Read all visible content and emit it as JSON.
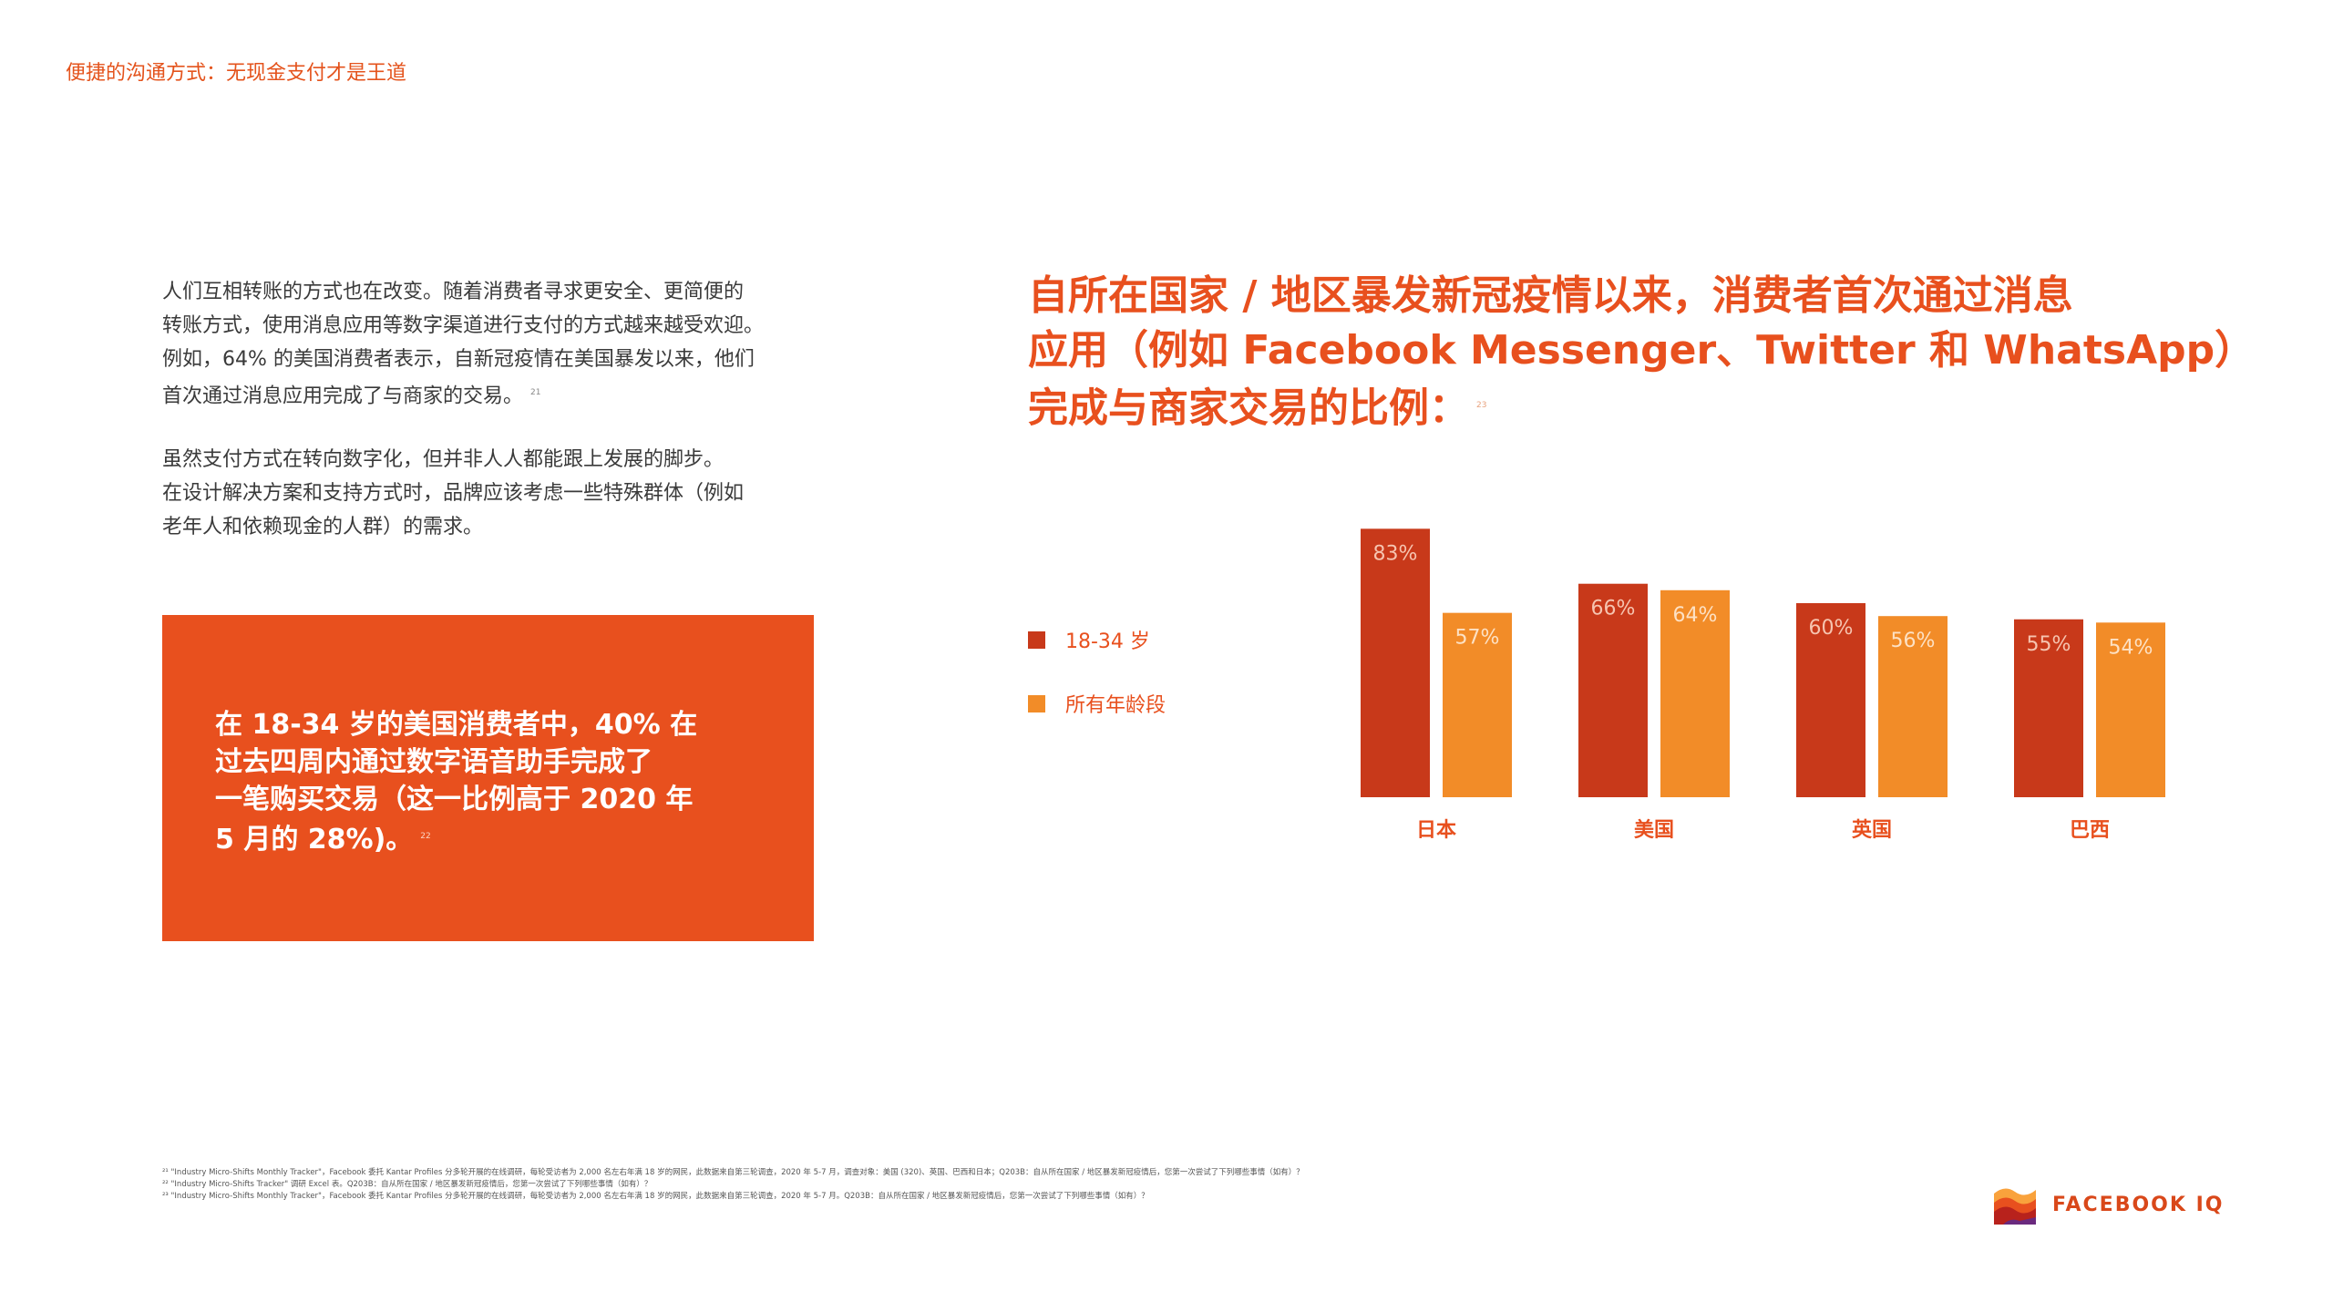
{
  "header": {
    "title": "便捷的沟通方式：无现金支付才是王道"
  },
  "body_text": {
    "paragraph1": [
      "人们互相转账的方式也在改变。随着消费者寻求更安全、更简便的",
      "转账方式，使用消息应用等数字渠道进行支付的方式越来越受欢迎。",
      "例如，64% 的美国消费者表示，自新冠疫情在美国暴发以来，他们",
      "首次通过消息应用完成了与商家的交易。"
    ],
    "paragraph1_footnote": "21",
    "paragraph2": [
      "虽然支付方式在转向数字化，但并非人人都能跟上发展的脚步。",
      "在设计解决方案和支持方式时，品牌应该考虑一些特殊群体（例如",
      "老年人和依赖现金的人群）的需求。"
    ]
  },
  "callout": {
    "lines": [
      "在 18-34 岁的美国消费者中，40% 在",
      "过去四周内通过数字语音助手完成了",
      "一笔购买交易（这一比例高于 2020 年",
      "5 月的 28%)。"
    ],
    "footnote": "22"
  },
  "chart_data": {
    "type": "bar",
    "title_lines": [
      "自所在国家 / 地区暴发新冠疫情以来，消费者首次通过消息",
      "应用（例如 Facebook Messenger、Twitter 和 WhatsApp）",
      "完成与商家交易的比例："
    ],
    "title_footnote": "23",
    "categories": [
      "日本",
      "美国",
      "英国",
      "巴西"
    ],
    "series": [
      {
        "name": "18-34 岁",
        "values": [
          83,
          66,
          60,
          55
        ],
        "color": "#c8391a"
      },
      {
        "name": "所有年龄段",
        "values": [
          57,
          64,
          56,
          54
        ],
        "color": "#f28c28"
      }
    ],
    "value_suffix": "%",
    "ylim": [
      0,
      100
    ],
    "grid": false,
    "legend_position": "left"
  },
  "footnotes": [
    "²¹ \"Industry Micro-Shifts Monthly Tracker\"，Facebook 委托 Kantar Profiles 分多轮开展的在线调研，每轮受访者为 2,000 名左右年满 18 岁的网民，此数据来自第三轮调查，2020 年 5-7 月，调查对象：美国 (320)、英国、巴西和日本；Q203B：自从所在国家 / 地区暴发新冠疫情后，您第一次尝试了下列哪些事情（如有）？",
    "²² \"Industry Micro-Shifts Tracker\" 调研 Excel 表。Q203B：自从所在国家 / 地区暴发新冠疫情后，您第一次尝试了下列哪些事情（如有）？",
    "²³ \"Industry Micro-Shifts Monthly Tracker\"，Facebook 委托 Kantar Profiles 分多轮开展的在线调研，每轮受访者为 2,000 名左右年满 18 岁的网民，此数据来自第三轮调查，2020 年 5-7 月。Q203B：自从所在国家 / 地区暴发新冠疫情后，您第一次尝试了下列哪些事情（如有）？"
  ],
  "logo": {
    "text": "FACEBOOK IQ"
  }
}
